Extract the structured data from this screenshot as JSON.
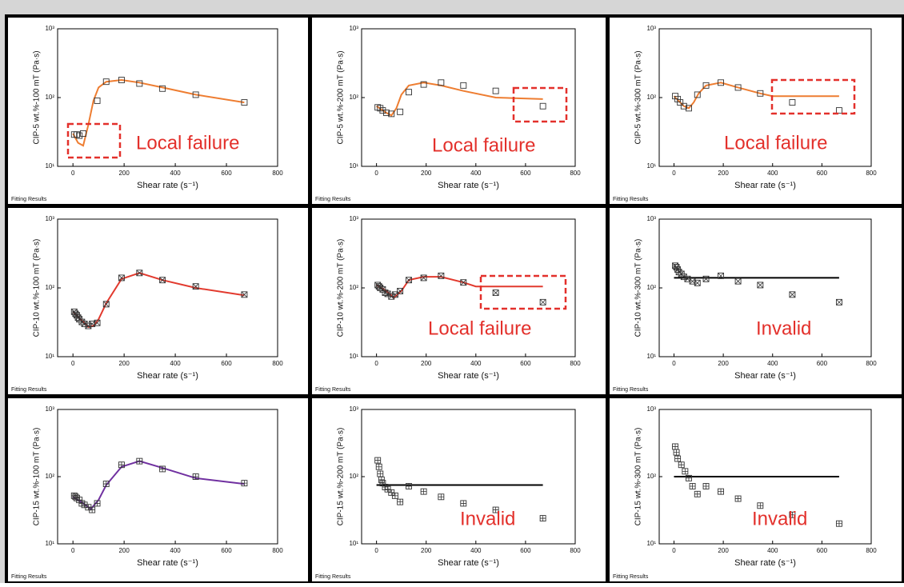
{
  "chart_data": [
    {
      "type": "scatter",
      "title": "CIP-5 wt.%-100 mT (Pa·s)",
      "x_label": "Shear rate (s⁻¹)",
      "footer": "Fitting Results",
      "annotation": "Local failure",
      "x": [
        5,
        15,
        25,
        40,
        95,
        130,
        190,
        260,
        350,
        480,
        670
      ],
      "values": [
        29,
        29,
        28,
        30,
        90,
        170,
        180,
        160,
        135,
        110,
        85
      ],
      "marker": "square",
      "fit": {
        "color": "#ee7d31",
        "x": [
          0,
          20,
          40,
          60,
          80,
          100,
          130,
          190,
          260,
          350,
          480,
          670
        ],
        "values": [
          30,
          22,
          20,
          40,
          90,
          140,
          170,
          180,
          165,
          140,
          110,
          85
        ]
      },
      "xlim": [
        -60,
        800
      ],
      "ylim": [
        10,
        1000
      ],
      "log_y": true,
      "xticks": [
        0,
        200,
        400,
        600,
        800
      ],
      "yticks": [
        {
          "value": 10,
          "label": "10¹"
        },
        {
          "value": 100,
          "label": "10²"
        },
        {
          "value": 1000,
          "label": "10³"
        }
      ]
    },
    {
      "type": "scatter",
      "title": "CIP-5 wt.%-200 mT (Pa·s)",
      "x_label": "Shear rate (s⁻¹)",
      "footer": "Fitting Results",
      "annotation": "Local failure",
      "x": [
        5,
        15,
        25,
        40,
        60,
        95,
        130,
        190,
        260,
        350,
        480,
        670
      ],
      "values": [
        72,
        70,
        65,
        60,
        58,
        62,
        120,
        155,
        165,
        150,
        125,
        75
      ],
      "marker": "square",
      "fit": {
        "color": "#ee7d31",
        "x": [
          0,
          40,
          60,
          80,
          100,
          130,
          190,
          260,
          350,
          480,
          670
        ],
        "values": [
          75,
          60,
          55,
          70,
          110,
          150,
          165,
          150,
          125,
          100,
          95
        ]
      },
      "xlim": [
        -60,
        800
      ],
      "ylim": [
        10,
        1000
      ],
      "log_y": true,
      "xticks": [
        0,
        200,
        400,
        600,
        800
      ],
      "yticks": [
        {
          "value": 10,
          "label": "10¹"
        },
        {
          "value": 100,
          "label": "10²"
        },
        {
          "value": 1000,
          "label": "10³"
        }
      ]
    },
    {
      "type": "scatter",
      "title": "CIP-5 wt.%-300 mT (Pa·s)",
      "x_label": "Shear rate (s⁻¹)",
      "footer": "Fitting Results",
      "annotation": "Local failure",
      "x": [
        5,
        15,
        25,
        40,
        60,
        95,
        130,
        190,
        260,
        350,
        480,
        670
      ],
      "values": [
        105,
        95,
        85,
        75,
        70,
        110,
        150,
        165,
        140,
        115,
        85,
        65
      ],
      "marker": "square",
      "fit": {
        "color": "#ee7d31",
        "x": [
          0,
          40,
          60,
          80,
          100,
          130,
          190,
          260,
          350,
          400,
          670
        ],
        "values": [
          105,
          75,
          70,
          85,
          115,
          150,
          165,
          140,
          115,
          105,
          105
        ]
      },
      "xlim": [
        -60,
        800
      ],
      "ylim": [
        10,
        1000
      ],
      "log_y": true,
      "xticks": [
        0,
        200,
        400,
        600,
        800
      ],
      "yticks": [
        {
          "value": 10,
          "label": "10¹"
        },
        {
          "value": 100,
          "label": "10²"
        },
        {
          "value": 1000,
          "label": "10³"
        }
      ]
    },
    {
      "type": "scatter",
      "title": "CIP-10 wt.%-100 mT (Pa·s)",
      "x_label": "Shear rate (s⁻¹)",
      "footer": "Fitting Results",
      "x": [
        5,
        10,
        15,
        20,
        25,
        35,
        45,
        60,
        75,
        95,
        130,
        190,
        260,
        350,
        480,
        670
      ],
      "values": [
        45,
        42,
        40,
        37,
        35,
        32,
        30,
        28,
        30,
        31,
        58,
        140,
        165,
        130,
        105,
        80
      ],
      "marker": "square-x",
      "fit": {
        "color": "#e23a2e",
        "x": [
          0,
          30,
          60,
          80,
          100,
          130,
          190,
          260,
          350,
          480,
          670
        ],
        "values": [
          45,
          35,
          27,
          28,
          35,
          60,
          135,
          165,
          130,
          100,
          78
        ]
      },
      "xlim": [
        -60,
        800
      ],
      "ylim": [
        10,
        1000
      ],
      "log_y": true,
      "xticks": [
        0,
        200,
        400,
        600,
        800
      ],
      "yticks": [
        {
          "value": 10,
          "label": "10¹"
        },
        {
          "value": 100,
          "label": "10²"
        },
        {
          "value": 1000,
          "label": "10³"
        }
      ]
    },
    {
      "type": "scatter",
      "title": "CIP-10 wt.%-200 mT (Pa·s)",
      "x_label": "Shear rate (s⁻¹)",
      "footer": "Fitting Results",
      "annotation": "Local failure",
      "x": [
        5,
        10,
        15,
        25,
        35,
        45,
        60,
        75,
        95,
        130,
        190,
        260,
        350,
        480,
        670
      ],
      "values": [
        110,
        105,
        100,
        95,
        85,
        82,
        75,
        80,
        90,
        130,
        140,
        150,
        120,
        85,
        62
      ],
      "marker": "square-x",
      "fit": {
        "color": "#e23a2e",
        "x": [
          0,
          40,
          70,
          100,
          130,
          190,
          260,
          350,
          400,
          670
        ],
        "values": [
          110,
          90,
          72,
          90,
          130,
          145,
          145,
          120,
          105,
          105
        ]
      },
      "xlim": [
        -60,
        800
      ],
      "ylim": [
        10,
        1000
      ],
      "log_y": true,
      "xticks": [
        0,
        200,
        400,
        600,
        800
      ],
      "yticks": [
        {
          "value": 10,
          "label": "10¹"
        },
        {
          "value": 100,
          "label": "10²"
        },
        {
          "value": 1000,
          "label": "10³"
        }
      ]
    },
    {
      "type": "scatter",
      "title": "CIP-10 wt.%-300 mT (Pa·s)",
      "x_label": "Shear rate (s⁻¹)",
      "footer": "Fitting Results",
      "annotation": "Invalid",
      "x": [
        5,
        10,
        15,
        20,
        30,
        40,
        55,
        75,
        95,
        130,
        190,
        260,
        350,
        480,
        670
      ],
      "values": [
        210,
        200,
        185,
        170,
        160,
        145,
        135,
        125,
        118,
        135,
        150,
        125,
        110,
        80,
        62
      ],
      "marker": "square-x",
      "fit": {
        "color": "#000000",
        "x": [
          0,
          670
        ],
        "values": [
          140,
          140
        ]
      },
      "xlim": [
        -60,
        800
      ],
      "ylim": [
        10,
        1000
      ],
      "log_y": true,
      "xticks": [
        0,
        200,
        400,
        600,
        800
      ],
      "yticks": [
        {
          "value": 10,
          "label": "10¹"
        },
        {
          "value": 100,
          "label": "10²"
        },
        {
          "value": 1000,
          "label": "10³"
        }
      ]
    },
    {
      "type": "scatter",
      "title": "CIP-15 wt.%-100 mT (Pa·s)",
      "x_label": "Shear rate (s⁻¹)",
      "footer": "Fitting Results",
      "x": [
        5,
        10,
        15,
        25,
        35,
        45,
        60,
        75,
        95,
        130,
        190,
        260,
        350,
        480,
        670
      ],
      "values": [
        52,
        50,
        48,
        45,
        40,
        38,
        35,
        32,
        40,
        78,
        150,
        170,
        130,
        100,
        80
      ],
      "marker": "square-plus",
      "fit": {
        "color": "#7030a0",
        "x": [
          0,
          40,
          70,
          100,
          130,
          190,
          260,
          350,
          480,
          670
        ],
        "values": [
          50,
          40,
          33,
          45,
          75,
          140,
          170,
          135,
          95,
          78
        ]
      },
      "xlim": [
        -60,
        800
      ],
      "ylim": [
        10,
        1000
      ],
      "log_y": true,
      "xticks": [
        0,
        200,
        400,
        600,
        800
      ],
      "yticks": [
        {
          "value": 10,
          "label": "10¹"
        },
        {
          "value": 100,
          "label": "10²"
        },
        {
          "value": 1000,
          "label": "10³"
        }
      ]
    },
    {
      "type": "scatter",
      "title": "CIP-15 wt.%-200 mT (Pa·s)",
      "x_label": "Shear rate (s⁻¹)",
      "footer": "Fitting Results",
      "annotation": "Invalid",
      "x": [
        5,
        10,
        15,
        20,
        25,
        35,
        45,
        60,
        75,
        95,
        130,
        190,
        260,
        350,
        480,
        670
      ],
      "values": [
        175,
        140,
        110,
        90,
        80,
        70,
        65,
        58,
        52,
        42,
        72,
        60,
        50,
        40,
        32,
        24
      ],
      "marker": "square-plus",
      "fit": {
        "color": "#000000",
        "x": [
          0,
          670
        ],
        "values": [
          75,
          75
        ]
      },
      "xlim": [
        -60,
        800
      ],
      "ylim": [
        10,
        1000
      ],
      "log_y": true,
      "xticks": [
        0,
        200,
        400,
        600,
        800
      ],
      "yticks": [
        {
          "value": 10,
          "label": "10¹"
        },
        {
          "value": 100,
          "label": "10²"
        },
        {
          "value": 1000,
          "label": "10³"
        }
      ]
    },
    {
      "type": "scatter",
      "title": "CIP-15 wt.%-300 mT (Pa·s)",
      "x_label": "Shear rate (s⁻¹)",
      "footer": "Fitting Results",
      "annotation": "Invalid",
      "x": [
        5,
        10,
        15,
        30,
        45,
        60,
        75,
        95,
        130,
        190,
        260,
        350,
        480,
        670
      ],
      "values": [
        280,
        230,
        185,
        150,
        120,
        95,
        72,
        55,
        72,
        60,
        47,
        37,
        27,
        20
      ],
      "marker": "square-plus",
      "fit": {
        "color": "#000000",
        "x": [
          0,
          670
        ],
        "values": [
          100,
          100
        ]
      },
      "xlim": [
        -60,
        800
      ],
      "ylim": [
        10,
        1000
      ],
      "log_y": true,
      "xticks": [
        0,
        200,
        400,
        600,
        800
      ],
      "yticks": [
        {
          "value": 10,
          "label": "10¹"
        },
        {
          "value": 100,
          "label": "10²"
        },
        {
          "value": 1000,
          "label": "10³"
        }
      ]
    }
  ]
}
